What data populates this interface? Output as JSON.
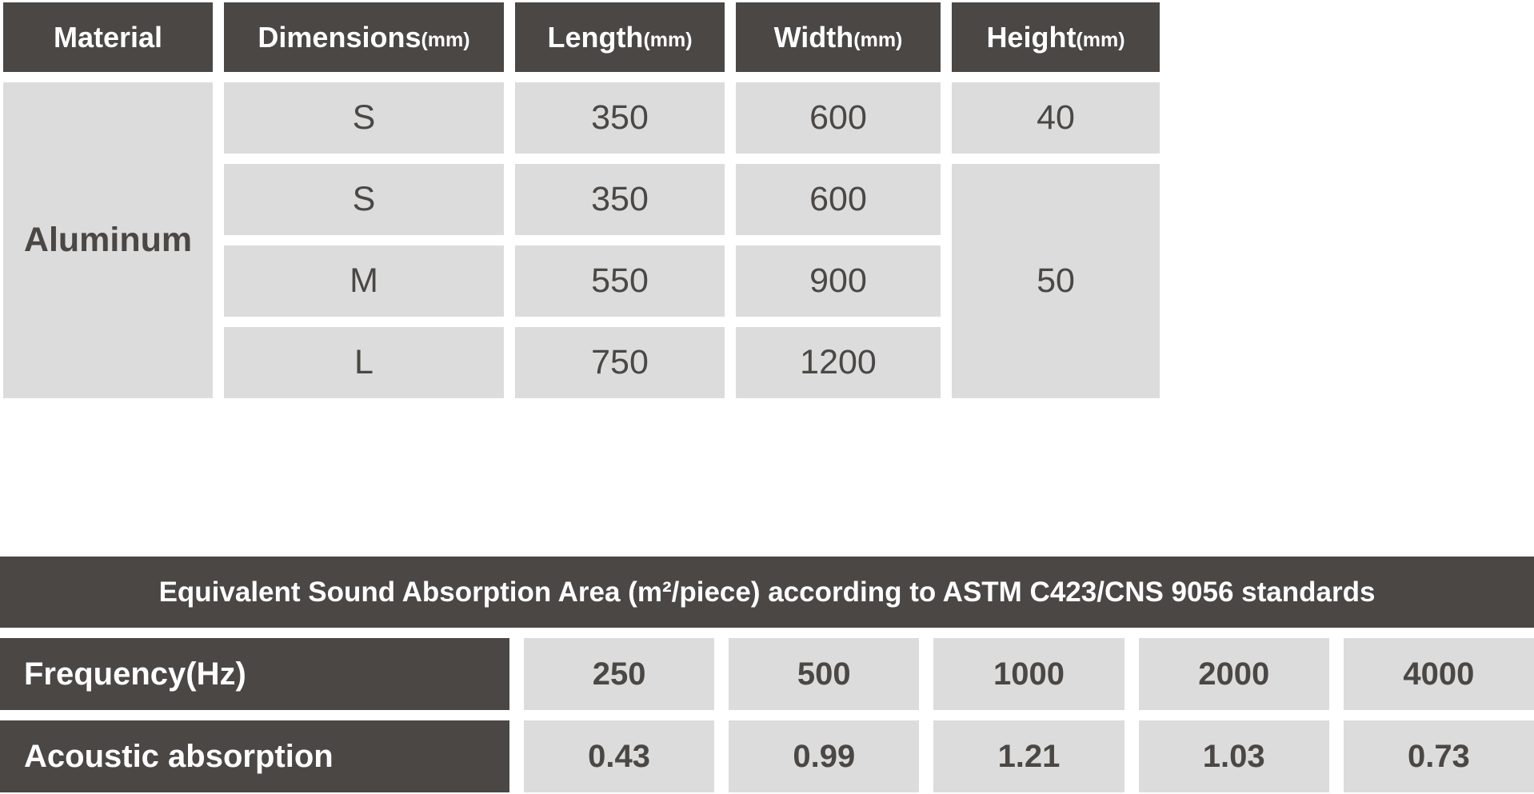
{
  "colors": {
    "header_bg": "#4a4745",
    "cell_bg": "#dcdcdc",
    "header_text": "#ffffff",
    "cell_text": "#4a4745"
  },
  "spec_table": {
    "headers": [
      {
        "label": "Material",
        "unit": ""
      },
      {
        "label": "Dimensions",
        "unit": "(mm)"
      },
      {
        "label": "Length",
        "unit": "(mm)"
      },
      {
        "label": "Width",
        "unit": "(mm)"
      },
      {
        "label": "Height",
        "unit": "(mm)"
      }
    ],
    "material": "Aluminum",
    "rows": [
      {
        "size": "S",
        "length": "350",
        "width": "600"
      },
      {
        "size": "S",
        "length": "350",
        "width": "600"
      },
      {
        "size": "M",
        "length": "550",
        "width": "900"
      },
      {
        "size": "L",
        "length": "750",
        "width": "1200"
      }
    ],
    "height_first": "40",
    "height_merged": "50"
  },
  "absorption_table": {
    "title": "Equivalent Sound Absorption Area (m²/piece) according to ASTM C423/CNS 9056 standards",
    "frequency_label": "Frequency(Hz)",
    "absorption_label": "Acoustic absorption",
    "frequencies": [
      "250",
      "500",
      "1000",
      "2000",
      "4000"
    ],
    "absorption_values": [
      "0.43",
      "0.99",
      "1.21",
      "1.03",
      "0.73"
    ]
  }
}
